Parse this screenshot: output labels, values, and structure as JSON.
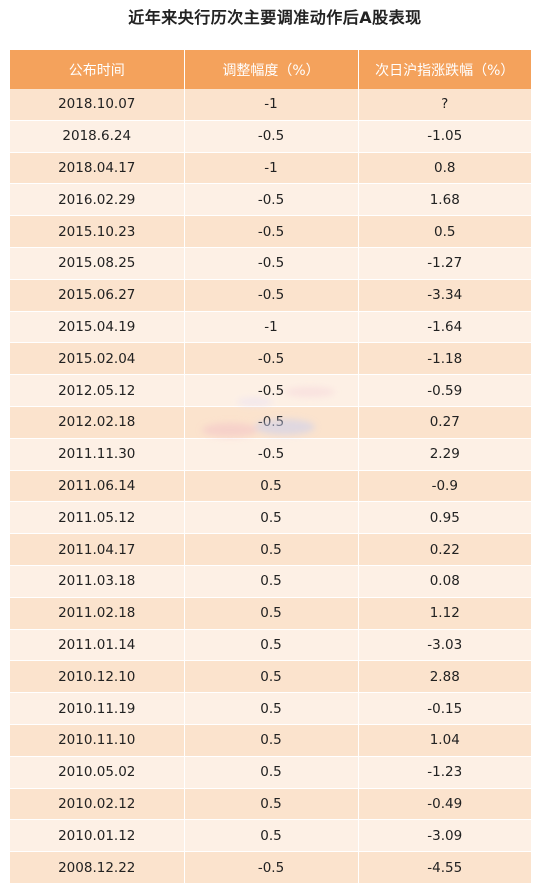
{
  "title": "近年来央行历次主要调准动作后A股表现",
  "table": {
    "headers": [
      "公布时间",
      "调整幅度（%）",
      "次日沪指涨跌幅（%）"
    ],
    "rows": [
      {
        "date": "2018.10.07",
        "adjust": "-1",
        "change": "?",
        "trend": "neutral"
      },
      {
        "date": "2018.6.24",
        "adjust": "-0.5",
        "change": "-1.05",
        "trend": "down"
      },
      {
        "date": "2018.04.17",
        "adjust": "-1",
        "change": "0.8",
        "trend": "up"
      },
      {
        "date": "2016.02.29",
        "adjust": "-0.5",
        "change": "1.68",
        "trend": "up"
      },
      {
        "date": "2015.10.23",
        "adjust": "-0.5",
        "change": "0.5",
        "trend": "up"
      },
      {
        "date": "2015.08.25",
        "adjust": "-0.5",
        "change": "-1.27",
        "trend": "down"
      },
      {
        "date": "2015.06.27",
        "adjust": "-0.5",
        "change": "-3.34",
        "trend": "down"
      },
      {
        "date": "2015.04.19",
        "adjust": "-1",
        "change": "-1.64",
        "trend": "down"
      },
      {
        "date": "2015.02.04",
        "adjust": "-0.5",
        "change": "-1.18",
        "trend": "down"
      },
      {
        "date": "2012.05.12",
        "adjust": "-0.5",
        "change": "-0.59",
        "trend": "down"
      },
      {
        "date": "2012.02.18",
        "adjust": "-0.5",
        "change": "0.27",
        "trend": "up"
      },
      {
        "date": "2011.11.30",
        "adjust": "-0.5",
        "change": "2.29",
        "trend": "up"
      },
      {
        "date": "2011.06.14",
        "adjust": "0.5",
        "change": "-0.9",
        "trend": "down"
      },
      {
        "date": "2011.05.12",
        "adjust": "0.5",
        "change": "0.95",
        "trend": "up"
      },
      {
        "date": "2011.04.17",
        "adjust": "0.5",
        "change": "0.22",
        "trend": "up"
      },
      {
        "date": "2011.03.18",
        "adjust": "0.5",
        "change": "0.08",
        "trend": "up"
      },
      {
        "date": "2011.02.18",
        "adjust": "0.5",
        "change": "1.12",
        "trend": "up"
      },
      {
        "date": "2011.01.14",
        "adjust": "0.5",
        "change": "-3.03",
        "trend": "down"
      },
      {
        "date": "2010.12.10",
        "adjust": "0.5",
        "change": "2.88",
        "trend": "up"
      },
      {
        "date": "2010.11.19",
        "adjust": "0.5",
        "change": "-0.15",
        "trend": "down"
      },
      {
        "date": "2010.11.10",
        "adjust": "0.5",
        "change": "1.04",
        "trend": "up"
      },
      {
        "date": "2010.05.02",
        "adjust": "0.5",
        "change": "-1.23",
        "trend": "down"
      },
      {
        "date": "2010.02.12",
        "adjust": "0.5",
        "change": "-0.49",
        "trend": "down"
      },
      {
        "date": "2010.01.12",
        "adjust": "0.5",
        "change": "-3.09",
        "trend": "down"
      },
      {
        "date": "2008.12.22",
        "adjust": "-0.5",
        "change": "-4.55",
        "trend": "down"
      }
    ]
  },
  "colors": {
    "header_bg": "#f4a25c",
    "row_odd": "#fbe3cd",
    "row_even": "#fdf0e5",
    "up": "#e8262b",
    "down": "#2e6b1e"
  }
}
